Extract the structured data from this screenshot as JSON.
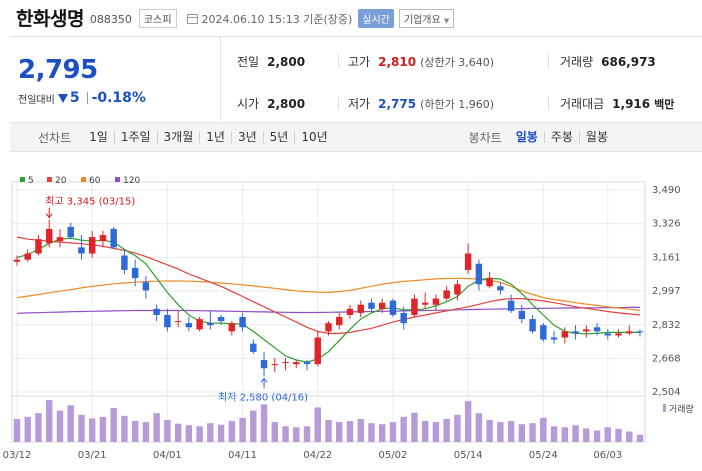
{
  "header": {
    "company": "한화생명",
    "code": "088350",
    "market": "코스피",
    "datetime": "2024.06.10 15:13 기준(장중)",
    "realtime": "실시간",
    "overview": "기업개요"
  },
  "quote": {
    "price": "2,795",
    "change_label": "전일대비",
    "change": "5",
    "change_pct": "-0.18%",
    "prev_close_label": "전일",
    "prev_close": "2,800",
    "high_label": "고가",
    "high": "2,810",
    "upper_limit": "(상한가 3,640)",
    "volume_label": "거래량",
    "volume": "686,973",
    "open_label": "시가",
    "open": "2,800",
    "low_label": "저가",
    "low": "2,775",
    "lower_limit": "(하한가 1,960)",
    "amount_label": "거래대금",
    "amount": "1,916",
    "amount_unit": "백만"
  },
  "period_bar": {
    "label": "선차트",
    "periods": [
      "1일",
      "1주일",
      "3개월",
      "1년",
      "3년",
      "5년",
      "10년"
    ],
    "candle_label": "봉차트",
    "candle_tabs": [
      "일봉",
      "주봉",
      "월봉"
    ],
    "active_tab": "일봉"
  },
  "chart_data": {
    "type": "candlestick",
    "legend": [
      {
        "name": "5",
        "color": "#2ca02c"
      },
      {
        "name": "20",
        "color": "#e2413c"
      },
      {
        "name": "60",
        "color": "#ee8a25"
      },
      {
        "name": "120",
        "color": "#8e4fc8"
      }
    ],
    "y_ticks": [
      3490,
      3326,
      3161,
      2997,
      2832,
      2668,
      2504
    ],
    "ylim": [
      2504,
      3490
    ],
    "x_labels": [
      "03/12",
      "03/21",
      "04/01",
      "04/11",
      "04/22",
      "05/02",
      "05/14",
      "05/24",
      "06/03"
    ],
    "x_label_index": [
      0,
      7,
      14,
      21,
      28,
      35,
      42,
      49,
      55
    ],
    "volume_label": "거래량",
    "annotations": {
      "high": {
        "label": "최고 3,345 (03/15)",
        "index": 3,
        "value": 3345
      },
      "low": {
        "label": "최저 2,580 (04/16)",
        "index": 23,
        "value": 2580
      }
    },
    "candles": [
      {
        "o": 3140,
        "h": 3170,
        "l": 3120,
        "c": 3150
      },
      {
        "o": 3150,
        "h": 3200,
        "l": 3140,
        "c": 3180
      },
      {
        "o": 3180,
        "h": 3270,
        "l": 3170,
        "c": 3250
      },
      {
        "o": 3230,
        "h": 3345,
        "l": 3210,
        "c": 3300
      },
      {
        "o": 3240,
        "h": 3300,
        "l": 3210,
        "c": 3260
      },
      {
        "o": 3310,
        "h": 3330,
        "l": 3250,
        "c": 3260
      },
      {
        "o": 3210,
        "h": 3270,
        "l": 3150,
        "c": 3180
      },
      {
        "o": 3180,
        "h": 3290,
        "l": 3160,
        "c": 3260
      },
      {
        "o": 3240,
        "h": 3290,
        "l": 3210,
        "c": 3270
      },
      {
        "o": 3300,
        "h": 3310,
        "l": 3200,
        "c": 3210
      },
      {
        "o": 3170,
        "h": 3200,
        "l": 3080,
        "c": 3100
      },
      {
        "o": 3110,
        "h": 3150,
        "l": 3020,
        "c": 3060
      },
      {
        "o": 3040,
        "h": 3070,
        "l": 2960,
        "c": 3000
      },
      {
        "o": 2910,
        "h": 2930,
        "l": 2850,
        "c": 2880
      },
      {
        "o": 2880,
        "h": 2910,
        "l": 2800,
        "c": 2820
      },
      {
        "o": 2850,
        "h": 2900,
        "l": 2820,
        "c": 2850
      },
      {
        "o": 2840,
        "h": 2870,
        "l": 2800,
        "c": 2820
      },
      {
        "o": 2810,
        "h": 2870,
        "l": 2800,
        "c": 2860
      },
      {
        "o": 2840,
        "h": 2900,
        "l": 2810,
        "c": 2830
      },
      {
        "o": 2870,
        "h": 2880,
        "l": 2830,
        "c": 2850
      },
      {
        "o": 2800,
        "h": 2850,
        "l": 2780,
        "c": 2840
      },
      {
        "o": 2870,
        "h": 2890,
        "l": 2800,
        "c": 2820
      },
      {
        "o": 2740,
        "h": 2760,
        "l": 2690,
        "c": 2700
      },
      {
        "o": 2660,
        "h": 2700,
        "l": 2580,
        "c": 2620
      },
      {
        "o": 2640,
        "h": 2670,
        "l": 2600,
        "c": 2640
      },
      {
        "o": 2650,
        "h": 2670,
        "l": 2610,
        "c": 2650
      },
      {
        "o": 2640,
        "h": 2660,
        "l": 2620,
        "c": 2650
      },
      {
        "o": 2650,
        "h": 2660,
        "l": 2610,
        "c": 2640
      },
      {
        "o": 2640,
        "h": 2800,
        "l": 2630,
        "c": 2770
      },
      {
        "o": 2800,
        "h": 2850,
        "l": 2780,
        "c": 2840
      },
      {
        "o": 2830,
        "h": 2890,
        "l": 2810,
        "c": 2870
      },
      {
        "o": 2880,
        "h": 2930,
        "l": 2860,
        "c": 2910
      },
      {
        "o": 2890,
        "h": 2950,
        "l": 2870,
        "c": 2930
      },
      {
        "o": 2940,
        "h": 2960,
        "l": 2900,
        "c": 2910
      },
      {
        "o": 2910,
        "h": 2960,
        "l": 2890,
        "c": 2940
      },
      {
        "o": 2950,
        "h": 2960,
        "l": 2870,
        "c": 2880
      },
      {
        "o": 2890,
        "h": 2920,
        "l": 2810,
        "c": 2840
      },
      {
        "o": 2880,
        "h": 2980,
        "l": 2870,
        "c": 2960
      },
      {
        "o": 2930,
        "h": 2990,
        "l": 2910,
        "c": 2940
      },
      {
        "o": 2930,
        "h": 2980,
        "l": 2900,
        "c": 2960
      },
      {
        "o": 2960,
        "h": 3020,
        "l": 2950,
        "c": 3000
      },
      {
        "o": 2980,
        "h": 3050,
        "l": 2950,
        "c": 3030
      },
      {
        "o": 3100,
        "h": 3230,
        "l": 3080,
        "c": 3180
      },
      {
        "o": 3130,
        "h": 3150,
        "l": 3000,
        "c": 3030
      },
      {
        "o": 3020,
        "h": 3090,
        "l": 3010,
        "c": 3060
      },
      {
        "o": 3020,
        "h": 3040,
        "l": 2980,
        "c": 3000
      },
      {
        "o": 2950,
        "h": 2980,
        "l": 2890,
        "c": 2900
      },
      {
        "o": 2900,
        "h": 2930,
        "l": 2840,
        "c": 2860
      },
      {
        "o": 2860,
        "h": 2880,
        "l": 2790,
        "c": 2800
      },
      {
        "o": 2830,
        "h": 2840,
        "l": 2750,
        "c": 2760
      },
      {
        "o": 2770,
        "h": 2800,
        "l": 2740,
        "c": 2760
      },
      {
        "o": 2770,
        "h": 2820,
        "l": 2740,
        "c": 2800
      },
      {
        "o": 2800,
        "h": 2830,
        "l": 2760,
        "c": 2790
      },
      {
        "o": 2800,
        "h": 2830,
        "l": 2770,
        "c": 2810
      },
      {
        "o": 2820,
        "h": 2840,
        "l": 2780,
        "c": 2800
      },
      {
        "o": 2790,
        "h": 2810,
        "l": 2760,
        "c": 2780
      },
      {
        "o": 2780,
        "h": 2810,
        "l": 2770,
        "c": 2790
      },
      {
        "o": 2790,
        "h": 2830,
        "l": 2780,
        "c": 2800
      },
      {
        "o": 2800,
        "h": 2810,
        "l": 2775,
        "c": 2795
      }
    ],
    "volumes": [
      44,
      48,
      55,
      80,
      60,
      70,
      52,
      45,
      48,
      65,
      50,
      40,
      38,
      55,
      42,
      35,
      32,
      30,
      36,
      33,
      40,
      46,
      60,
      72,
      38,
      30,
      28,
      30,
      66,
      42,
      38,
      40,
      44,
      36,
      34,
      38,
      48,
      56,
      40,
      38,
      44,
      52,
      78,
      55,
      42,
      38,
      40,
      34,
      36,
      46,
      30,
      28,
      32,
      26,
      22,
      28,
      25,
      20,
      14
    ],
    "ma5": [
      3160,
      3175,
      3200,
      3230,
      3250,
      3255,
      3245,
      3240,
      3245,
      3235,
      3200,
      3170,
      3130,
      3060,
      2990,
      2930,
      2880,
      2850,
      2840,
      2840,
      2838,
      2835,
      2800,
      2760,
      2720,
      2680,
      2660,
      2650,
      2665,
      2700,
      2755,
      2810,
      2860,
      2890,
      2910,
      2915,
      2905,
      2905,
      2910,
      2925,
      2945,
      2970,
      3020,
      3050,
      3060,
      3055,
      3030,
      2985,
      2930,
      2880,
      2830,
      2800,
      2790,
      2788,
      2790,
      2795,
      2795,
      2795,
      2795
    ],
    "ma20": [
      3260,
      3250,
      3245,
      3240,
      3235,
      3232,
      3228,
      3222,
      3215,
      3205,
      3195,
      3182,
      3165,
      3145,
      3125,
      3105,
      3080,
      3060,
      3040,
      3020,
      2995,
      2970,
      2945,
      2920,
      2895,
      2870,
      2845,
      2820,
      2800,
      2790,
      2790,
      2795,
      2805,
      2815,
      2830,
      2845,
      2858,
      2870,
      2880,
      2890,
      2900,
      2910,
      2920,
      2932,
      2945,
      2955,
      2960,
      2960,
      2955,
      2948,
      2940,
      2930,
      2920,
      2912,
      2905,
      2897,
      2890,
      2885,
      2880
    ],
    "ma60": [
      2965,
      2972,
      2980,
      2988,
      2996,
      3004,
      3012,
      3020,
      3026,
      3032,
      3036,
      3040,
      3043,
      3045,
      3046,
      3046,
      3045,
      3043,
      3040,
      3036,
      3032,
      3027,
      3022,
      3016,
      3010,
      3004,
      2998,
      2994,
      2991,
      2990,
      2994,
      3000,
      3010,
      3020,
      3030,
      3038,
      3044,
      3048,
      3052,
      3056,
      3058,
      3059,
      3058,
      3055,
      3048,
      3040,
      3020,
      2998,
      2980,
      2965,
      2955,
      2948,
      2940,
      2933,
      2926,
      2920,
      2914,
      2908,
      2902
    ],
    "ma120": [
      2888,
      2890,
      2891,
      2893,
      2894,
      2896,
      2897,
      2898,
      2899,
      2900,
      2901,
      2902,
      2902,
      2902,
      2902,
      2902,
      2902,
      2901,
      2900,
      2899,
      2898,
      2897,
      2896,
      2895,
      2894,
      2893,
      2892,
      2892,
      2892,
      2893,
      2894,
      2895,
      2896,
      2897,
      2898,
      2899,
      2900,
      2901,
      2902,
      2903,
      2904,
      2905,
      2906,
      2907,
      2908,
      2909,
      2910,
      2911,
      2912,
      2912,
      2913,
      2914,
      2914,
      2915,
      2915,
      2916,
      2916,
      2917,
      2917
    ]
  }
}
